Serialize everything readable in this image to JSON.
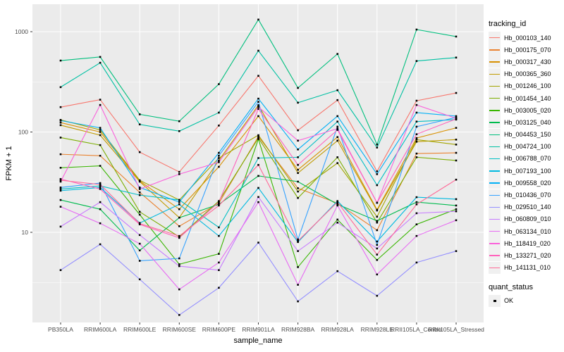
{
  "figure": {
    "panel_bg": "#EBEBEB",
    "grid_color": "#FFFFFF",
    "tick_color": "#333333",
    "axis_text_color": "#4D4D4D",
    "point_color": "#000000"
  },
  "axes": {
    "x_label": "sample_name",
    "y_label": "FPKM + 1",
    "y_tick_labels": [
      "10",
      "100",
      "1000"
    ]
  },
  "legend": {
    "tracking_title": "tracking_id",
    "quant_title": "quant_status",
    "quant_items": [
      {
        "label": "OK",
        "marker": "black-square"
      }
    ]
  },
  "chart_data": {
    "type": "line",
    "title": "",
    "xlabel": "sample_name",
    "ylabel": "FPKM + 1",
    "y_scale": "log10",
    "y_ticks": [
      10,
      100,
      1000
    ],
    "ylim": [
      1.3,
      1700
    ],
    "grid": "major-and-minor",
    "legend_position": "right",
    "point_marker": "black-square",
    "categories": [
      "PB350LA",
      "RRIM600LA",
      "RRIM600LE",
      "RRIM600SE",
      "RRIM600PE",
      "RRIM901LA",
      "RRIM928BA",
      "RRIM928LA",
      "RRIM928LE",
      "RRII105LA_Control",
      "RRII105LA_Stressed"
    ],
    "series": [
      {
        "name": "Hb_000103_140",
        "color": "#F8766D",
        "values": [
          177,
          210,
          63,
          40,
          116,
          363,
          104,
          208,
          40.5,
          205,
          245
        ]
      },
      {
        "name": "Hb_000175_070",
        "color": "#EA8331",
        "values": [
          60,
          58,
          25,
          11.5,
          19.5,
          90,
          27.5,
          19.5,
          10.5,
          61,
          62
        ]
      },
      {
        "name": "Hb_000317_430",
        "color": "#D89000",
        "values": [
          124,
          100,
          32.5,
          17,
          45,
          144,
          42,
          89,
          16.8,
          87,
          110
        ]
      },
      {
        "name": "Hb_000365_360",
        "color": "#C09B00",
        "values": [
          117,
          93,
          32,
          14,
          52,
          185,
          39,
          82,
          16.5,
          80,
          84
        ]
      },
      {
        "name": "Hb_001246_100",
        "color": "#A3A500",
        "values": [
          132,
          105,
          33,
          21,
          55,
          93,
          25.5,
          49,
          14.3,
          84,
          75
        ]
      },
      {
        "name": "Hb_001454_140",
        "color": "#7CAE00",
        "values": [
          88,
          74,
          16,
          9,
          20.5,
          87,
          22,
          56,
          12.5,
          56,
          52
        ]
      },
      {
        "name": "Hb_003005_020",
        "color": "#39B600",
        "values": [
          44,
          46,
          15,
          4.8,
          6.1,
          85,
          4.5,
          13.4,
          5.3,
          12,
          17
        ]
      },
      {
        "name": "Hb_003125_040",
        "color": "#00BB4E",
        "values": [
          21,
          17,
          6.6,
          14,
          19,
          36.5,
          32,
          19,
          13,
          20,
          18.5
        ]
      },
      {
        "name": "Hb_004453_150",
        "color": "#00BF7D",
        "values": [
          515,
          560,
          150,
          128,
          300,
          1320,
          275,
          600,
          75,
          1050,
          894
        ]
      },
      {
        "name": "Hb_004724_100",
        "color": "#00C1A3",
        "values": [
          280,
          490,
          119,
          102,
          156,
          646,
          196,
          261,
          70,
          510,
          552
        ]
      },
      {
        "name": "Hb_006788_070",
        "color": "#00BFC4",
        "values": [
          27,
          29,
          23.5,
          21,
          11.2,
          55,
          56,
          127,
          29.5,
          127,
          133
        ]
      },
      {
        "name": "Hb_007193_100",
        "color": "#00BAE0",
        "values": [
          26,
          28,
          12.4,
          19,
          9.2,
          27.7,
          8.0,
          20.5,
          8.1,
          22.4,
          21.4
        ]
      },
      {
        "name": "Hb_009558_020",
        "color": "#00B0F6",
        "values": [
          130,
          110,
          28,
          20,
          62,
          215,
          67,
          144,
          38,
          156,
          144
        ]
      },
      {
        "name": "Hb_010436_070",
        "color": "#35A2FF",
        "values": [
          28,
          31,
          5.2,
          5.5,
          58,
          200,
          8.5,
          113,
          7.5,
          113,
          140
        ]
      },
      {
        "name": "Hb_029510_140",
        "color": "#9590FF",
        "values": [
          4.2,
          7.6,
          3.4,
          1.5,
          2.8,
          7.9,
          2.05,
          4.1,
          2.33,
          5.0,
          6.5
        ]
      },
      {
        "name": "Hb_060809_010",
        "color": "#C77CFF",
        "values": [
          11.4,
          20,
          9.4,
          4.6,
          4.2,
          22.5,
          6.5,
          12.5,
          6.9,
          15.5,
          16.2
        ]
      },
      {
        "name": "Hb_063134_010",
        "color": "#E76BF3",
        "values": [
          18,
          12.3,
          7.7,
          2.7,
          5.0,
          20,
          3.0,
          18.5,
          3.8,
          9.2,
          13.2
        ]
      },
      {
        "name": "Hb_118419_020",
        "color": "#FA62DB",
        "values": [
          32,
          186,
          27,
          38,
          50,
          178,
          82,
          108,
          19.7,
          186,
          137
        ]
      },
      {
        "name": "Hb_133271_020",
        "color": "#FF62BC",
        "values": [
          34,
          27,
          12,
          8.8,
          20,
          170,
          47,
          105,
          19.7,
          95,
          135
        ]
      },
      {
        "name": "Hb_141131_010",
        "color": "#FF6A98",
        "values": [
          33,
          30,
          12.2,
          9.2,
          18.5,
          47,
          8.2,
          20,
          6.0,
          19,
          33.5
        ]
      }
    ]
  }
}
